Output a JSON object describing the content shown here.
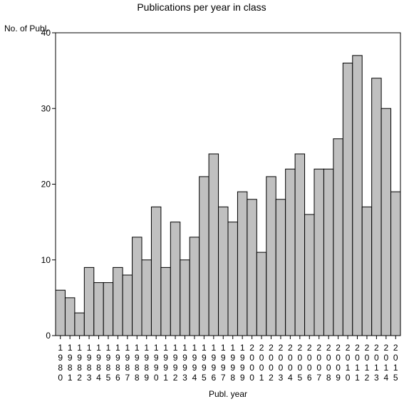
{
  "chart_data": {
    "type": "bar",
    "title": "Publications per year in class",
    "xlabel": "Publ. year",
    "ylabel": "No. of Publ.",
    "ylim": [
      0,
      40
    ],
    "yticks": [
      0,
      10,
      20,
      30,
      40
    ],
    "grid": false,
    "bar_color": "#c0c0c0",
    "categories": [
      "1980",
      "1981",
      "1982",
      "1983",
      "1984",
      "1985",
      "1986",
      "1987",
      "1988",
      "1989",
      "1990",
      "1991",
      "1992",
      "1993",
      "1994",
      "1995",
      "1996",
      "1997",
      "1998",
      "1999",
      "2000",
      "2001",
      "2002",
      "2003",
      "2004",
      "2005",
      "2006",
      "2007",
      "2008",
      "2009",
      "2010",
      "2011",
      "2012",
      "2013",
      "2014",
      "2015"
    ],
    "values": [
      6,
      5,
      3,
      9,
      7,
      7,
      9,
      8,
      13,
      10,
      17,
      9,
      15,
      10,
      13,
      21,
      24,
      17,
      15,
      19,
      18,
      11,
      21,
      18,
      22,
      24,
      16,
      22,
      22,
      26,
      36,
      37,
      17,
      34,
      30,
      19
    ]
  }
}
